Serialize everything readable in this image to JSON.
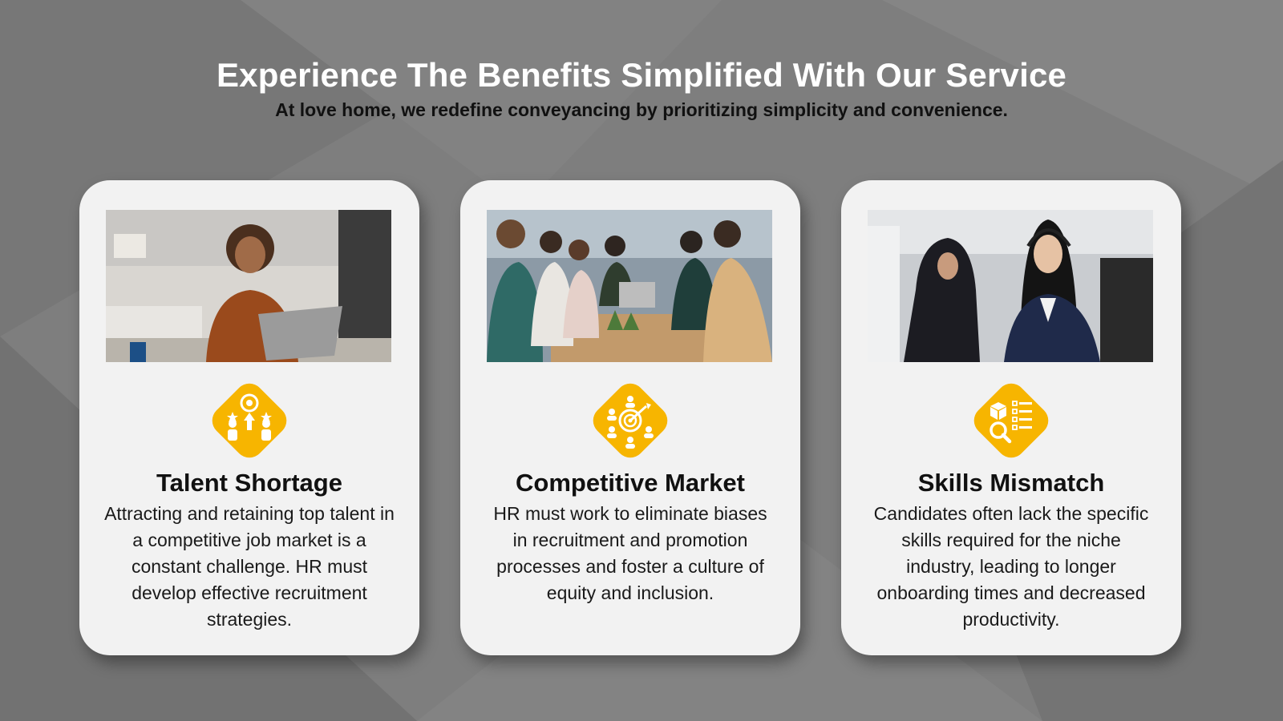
{
  "header": {
    "title": "Experience The Benefits Simplified With Our Service",
    "subtitle": "At love home, we redefine conveyancing by prioritizing simplicity and convenience."
  },
  "colors": {
    "background": "#7e7e7e",
    "card": "#f2f2f2",
    "accent": "#f7b500"
  },
  "cards": [
    {
      "title": "Talent Shortage",
      "text": "Attracting and retaining top talent in a competitive job market is a constant challenge. HR must develop effective recruitment strategies.",
      "icon": "talent-growth-icon",
      "photo": "woman-laughing-at-laptop-photo"
    },
    {
      "title": "Competitive Market",
      "text": "HR must work to eliminate biases in recruitment and promotion processes and foster a culture of equity and inclusion.",
      "icon": "target-team-icon",
      "photo": "team-meeting-photo"
    },
    {
      "title": "Skills Mismatch",
      "text": "Candidates often lack the specific skills required for the niche industry, leading to longer onboarding times and decreased productivity.",
      "icon": "skills-checklist-icon",
      "photo": "call-center-agents-photo"
    }
  ]
}
